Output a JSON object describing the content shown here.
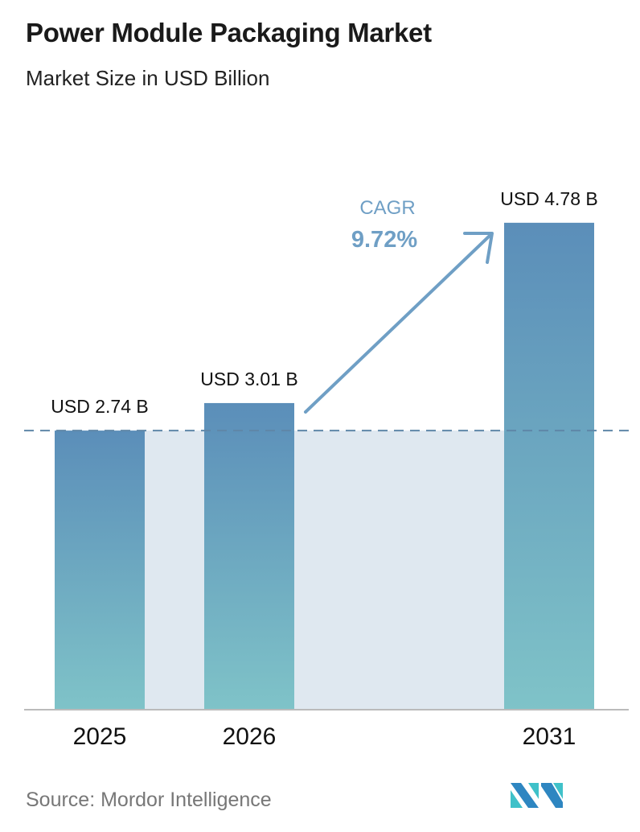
{
  "header": {
    "title": "Power Module Packaging Market",
    "subtitle": "Market Size in USD Billion"
  },
  "footer": {
    "source": "Source:  Mordor Intelligence",
    "logo_text": "Mordor Intelligence"
  },
  "colors": {
    "bar_top": "#5b8eb9",
    "bar_bottom": "#7fc3c8",
    "band": "#dfe8f0",
    "cagr": "#6f9fc5",
    "logo_dark": "#2e86c1",
    "logo_light": "#3fc1c9"
  },
  "chart_data": {
    "type": "bar",
    "title": "Power Module Packaging Market",
    "subtitle": "Market Size in USD Billion",
    "categories": [
      "2025",
      "2026",
      "2031"
    ],
    "values": [
      2.74,
      3.01,
      4.78
    ],
    "data_labels": [
      "USD 2.74 B",
      "USD 3.01 B",
      "USD 4.78 B"
    ],
    "annotation": {
      "label": "CAGR",
      "value": "9.72%"
    },
    "reference_line": 2.74,
    "ylim": [
      0,
      5
    ],
    "grid": false
  }
}
